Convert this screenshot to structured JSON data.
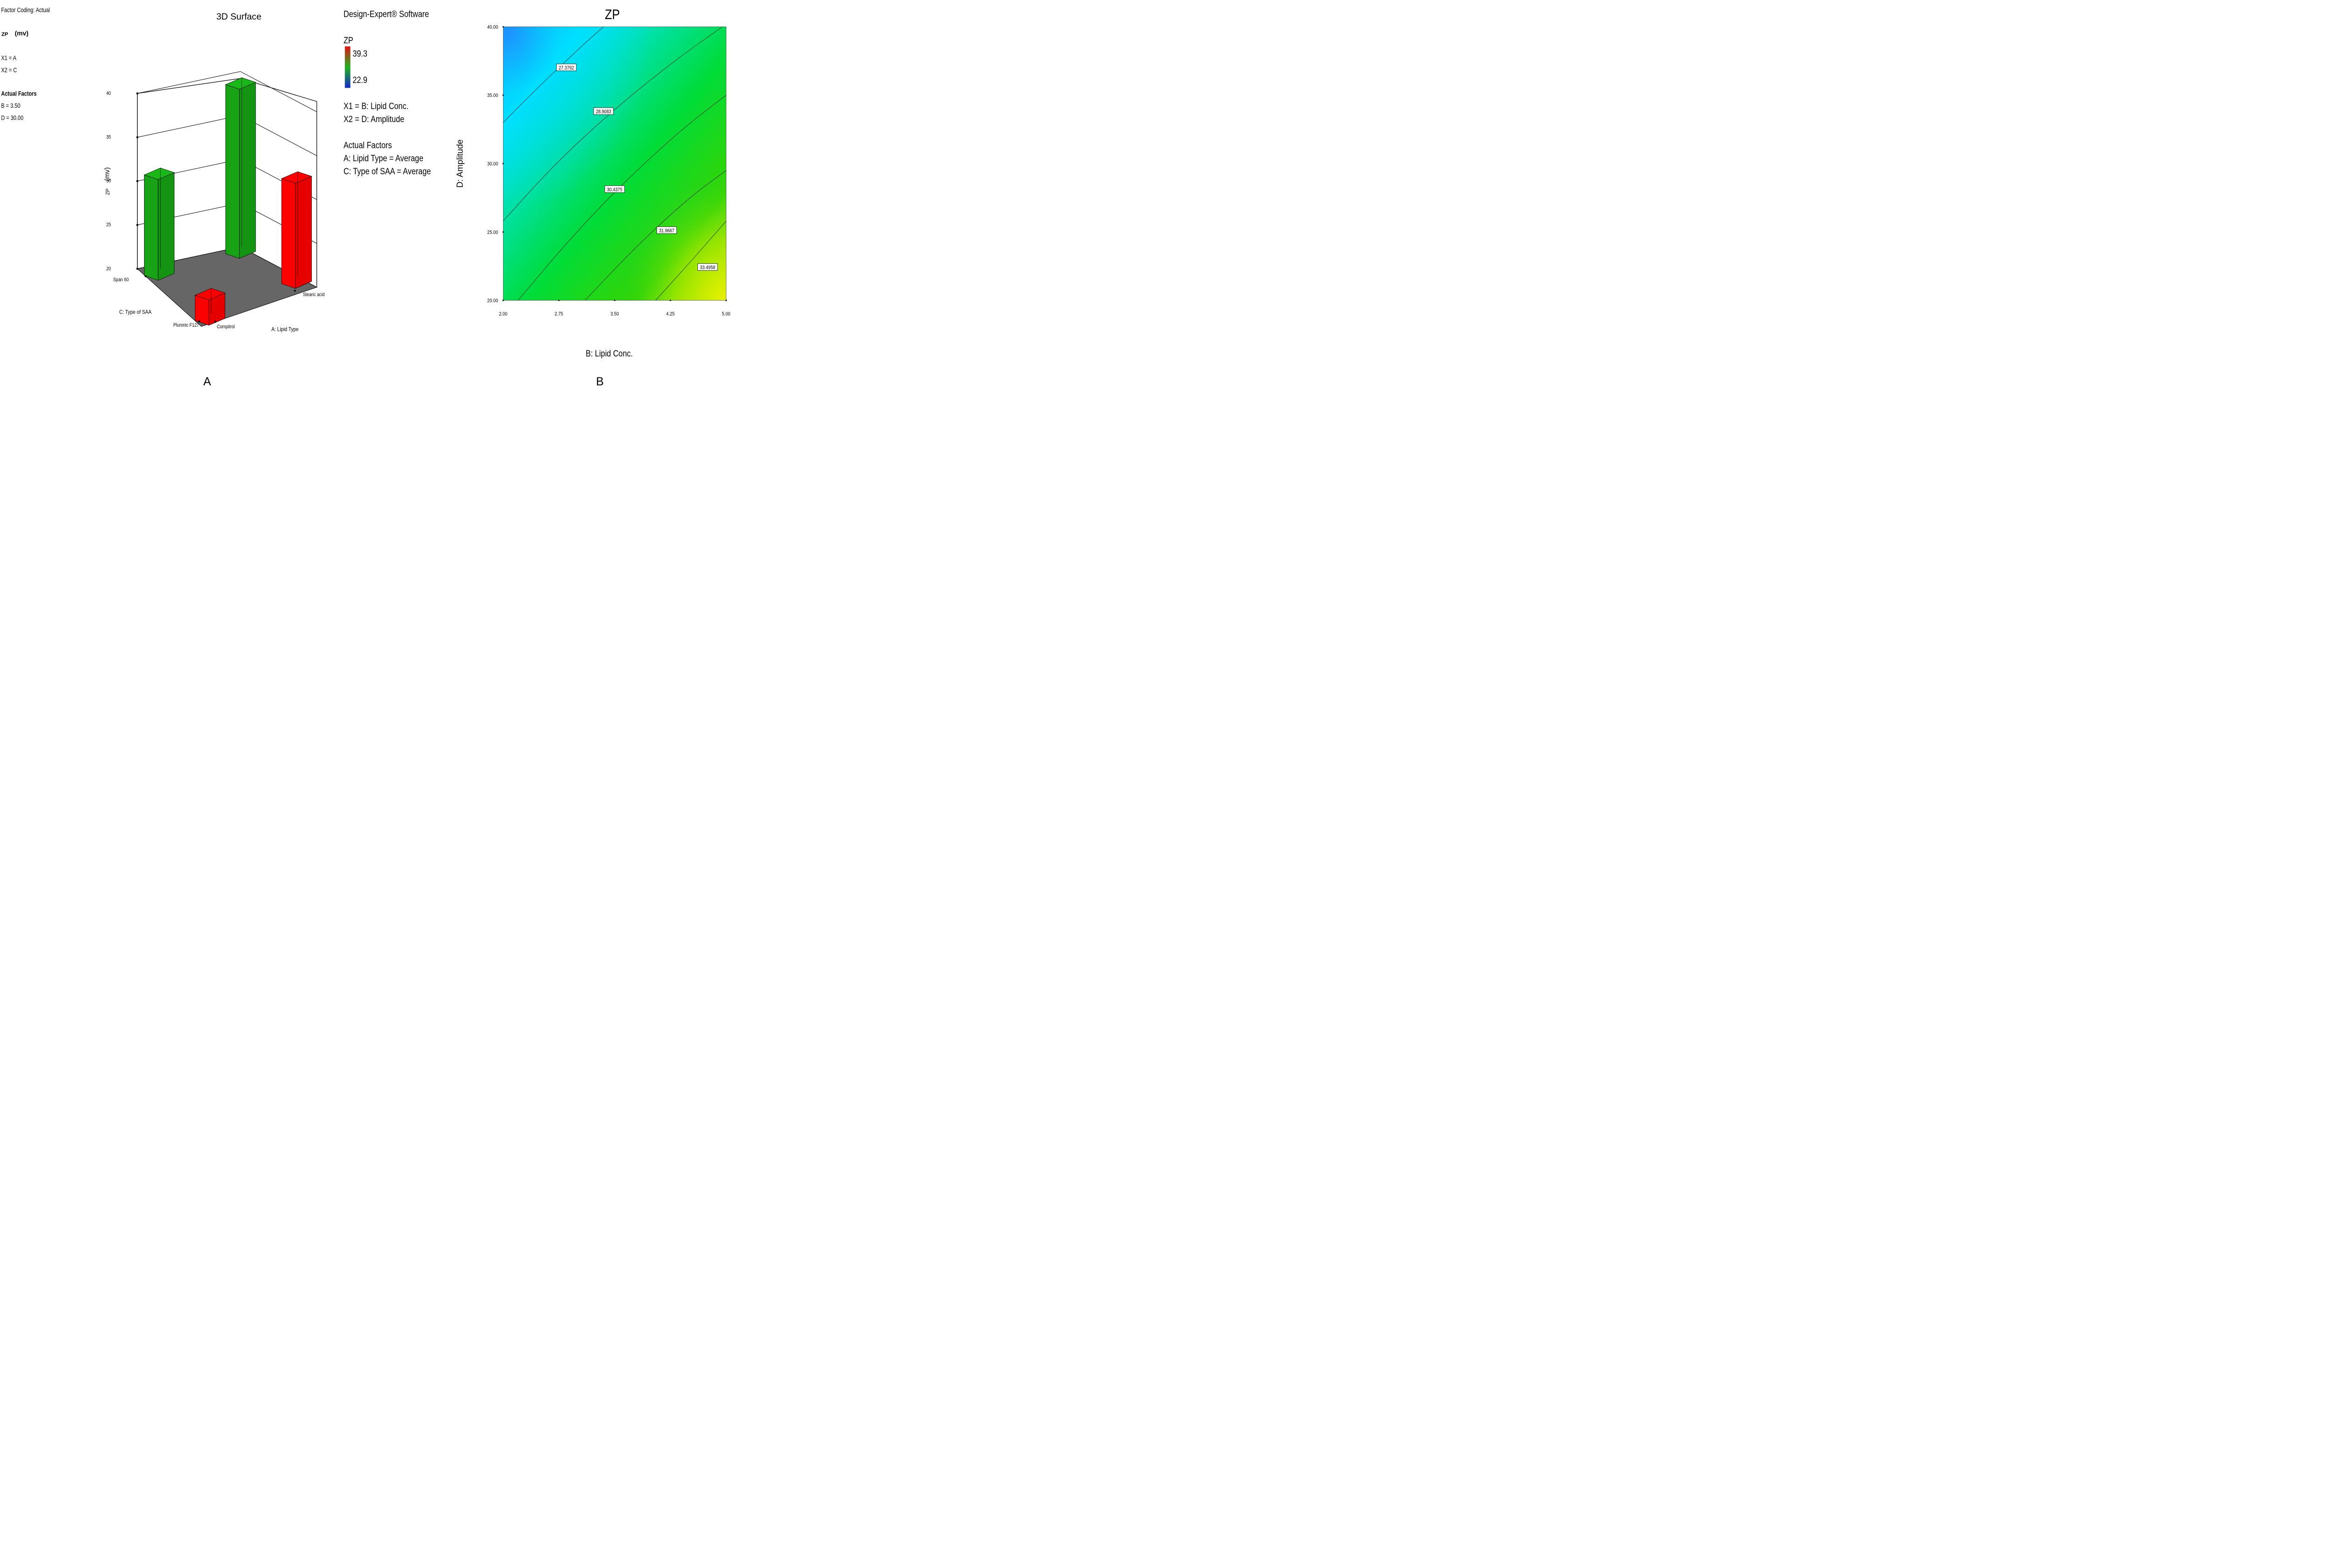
{
  "left_panel": {
    "factor_coding": "Factor Coding: Actual",
    "response_name": "ZP",
    "response_unit": "(mv)",
    "x1": "X1 = A",
    "x2": "X2 = C",
    "actual_factors_title": "Actual Factors",
    "factors": [
      "B = 3.50",
      "D = 30.00"
    ]
  },
  "legend_panel": {
    "software": "Design-Expert® Software",
    "response": "ZP",
    "scale_max": "39.3",
    "scale_min": "22.9",
    "scale_max_color": "#d3191c",
    "scale_min_color": "#1d32c8",
    "x1": "X1 = B: Lipid Conc.",
    "x2": "X2 = D: Amplitude",
    "actual_factors_title": "Actual Factors",
    "factors": [
      "A: Lipid Type  = Average",
      "C: Type of SAA = Average"
    ]
  },
  "panel_labels": {
    "a": "A",
    "b": "B"
  },
  "chart_data": [
    {
      "type": "bar",
      "subtype": "3d-bar",
      "title": "3D Surface",
      "zlabel_name": "ZP",
      "zlabel_unit": "(mv)",
      "xlabel": "A: Lipid Type",
      "ylabel": "C: Type of SAA",
      "x_categories": [
        "Compitrol",
        "Stearic acid"
      ],
      "y_categories": [
        "Pluronic F127",
        "Span 60"
      ],
      "zlim": [
        20,
        40
      ],
      "z_ticks": [
        "20",
        "25",
        "30",
        "35",
        "40"
      ],
      "bars": [
        {
          "lipid": "Compitrol",
          "saa": "Span 60",
          "value": 31.5,
          "color": "#17a315"
        },
        {
          "lipid": "Compitrol",
          "saa": "Pluronic F127",
          "value": 22.9,
          "color": "#ff0000"
        },
        {
          "lipid": "Stearic acid",
          "saa": "Span 60",
          "value": 39.3,
          "color": "#17a315"
        },
        {
          "lipid": "Stearic acid",
          "saa": "Pluronic F127",
          "value": 32.0,
          "color": "#ff0000"
        }
      ]
    },
    {
      "type": "heatmap",
      "subtype": "contour",
      "title": "ZP",
      "xlabel": "B: Lipid Conc.",
      "ylabel": "D: Amplitude",
      "xlim": [
        2,
        5
      ],
      "ylim": [
        20,
        40
      ],
      "x_ticks": [
        "2.00",
        "2.75",
        "3.50",
        "4.25",
        "5.00"
      ],
      "y_ticks": [
        "20.00",
        "25.00",
        "30.00",
        "35.00",
        "40.00"
      ],
      "contour_levels": [
        {
          "value": 27.3792,
          "label": "27.3792"
        },
        {
          "value": 28.9083,
          "label": "28.9083"
        },
        {
          "value": 30.4375,
          "label": "30.4375"
        },
        {
          "value": 31.9667,
          "label": "31.9667"
        },
        {
          "value": 33.4958,
          "label": "33.4958"
        }
      ],
      "colors": {
        "low": "#1e90ff",
        "mid": "#00d23c",
        "high": "#e6f000"
      }
    }
  ]
}
